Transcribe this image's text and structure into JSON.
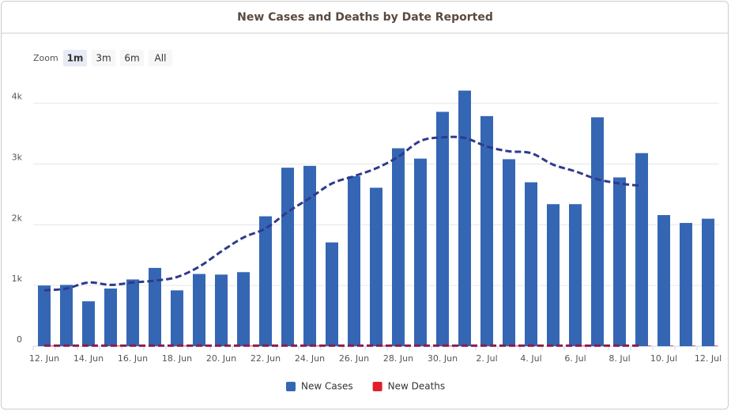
{
  "chart_data": {
    "type": "bar",
    "title": "New Cases and Deaths by Date Reported",
    "zoom": {
      "label": "Zoom",
      "buttons": [
        "1m",
        "3m",
        "6m",
        "All"
      ],
      "selected": "1m"
    },
    "categories": [
      "12. Jun",
      null,
      "14. Jun",
      null,
      "16. Jun",
      null,
      "18. Jun",
      null,
      "20. Jun",
      null,
      "22. Jun",
      null,
      "24. Jun",
      null,
      "26. Jun",
      null,
      "28. Jun",
      null,
      "30. Jun",
      null,
      "2. Jul",
      null,
      "4. Jul",
      null,
      "6. Jul",
      null,
      "8. Jul",
      null,
      "10. Jul",
      null,
      "12. Jul"
    ],
    "series": [
      {
        "name": "New Cases",
        "color": "#3566b4",
        "values": [
          1000,
          1010,
          740,
          950,
          1100,
          1290,
          920,
          1190,
          1180,
          1220,
          2140,
          2940,
          2970,
          1710,
          2800,
          2610,
          3260,
          3090,
          3860,
          4210,
          3790,
          3080,
          2700,
          2340,
          2340,
          3770,
          2780,
          3180,
          2160,
          2030,
          2100
        ]
      },
      {
        "name": "New Deaths",
        "color": "#e0202a",
        "values": [
          10,
          10,
          10,
          10,
          10,
          10,
          10,
          10,
          10,
          10,
          10,
          10,
          10,
          10,
          10,
          10,
          10,
          10,
          10,
          10,
          10,
          10,
          10,
          10,
          10,
          10,
          10,
          10,
          10,
          10,
          10
        ]
      }
    ],
    "lines": [
      {
        "color": "#2e3a8c",
        "values": [
          920,
          950,
          1050,
          1010,
          1050,
          1080,
          1140,
          1310,
          1560,
          1790,
          1940,
          2210,
          2440,
          2680,
          2800,
          2930,
          3120,
          3380,
          3440,
          3430,
          3290,
          3210,
          3180,
          2990,
          2880,
          2750,
          2680,
          2640,
          null,
          null,
          null
        ]
      },
      {
        "color": "#8b1a4a",
        "values": [
          10,
          10,
          10,
          10,
          10,
          10,
          10,
          10,
          10,
          10,
          10,
          10,
          10,
          10,
          10,
          10,
          10,
          10,
          10,
          10,
          10,
          10,
          10,
          10,
          10,
          10,
          10,
          10,
          null,
          null,
          null
        ]
      }
    ],
    "ylim": [
      0,
      4400
    ],
    "yticks": [
      0,
      {
        "value": 1000,
        "label": "1k"
      },
      {
        "value": 2000,
        "label": "2k"
      },
      {
        "value": 3000,
        "label": "3k"
      },
      {
        "value": 4000,
        "label": "4k"
      }
    ],
    "grid": true
  }
}
